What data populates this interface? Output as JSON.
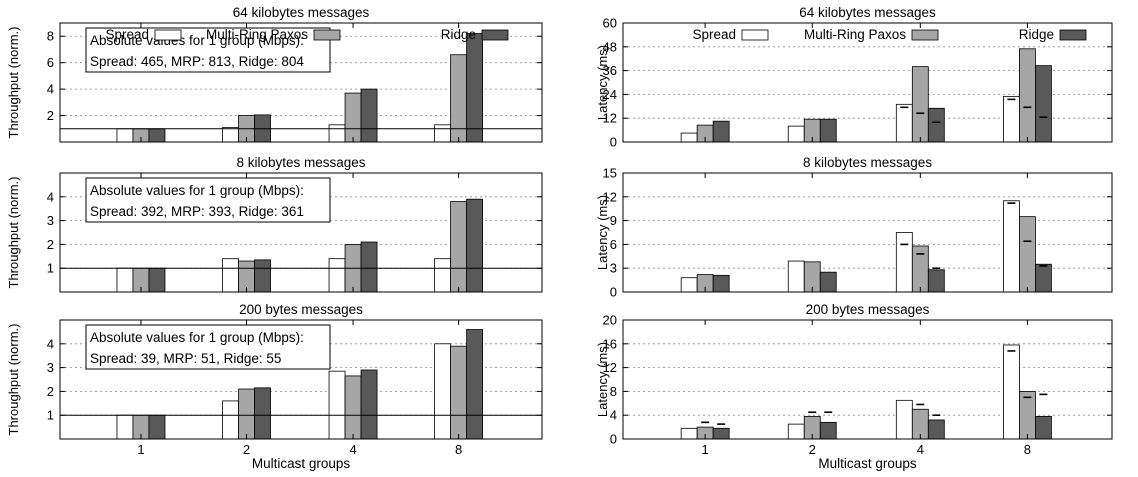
{
  "figure": {
    "xlabel": "Multicast groups",
    "categories": [
      "1",
      "2",
      "4",
      "8"
    ]
  },
  "legend_labels": [
    "Spread",
    "Multi-Ring Paxos",
    "Ridge"
  ],
  "colors": {
    "Spread": "#ffffff",
    "Multi-Ring Paxos": "#a6a6a6",
    "Ridge": "#595959",
    "axis": "#000000",
    "grid": "#8c8c8c"
  },
  "chart_data": [
    {
      "type": "bar",
      "title": "64 kilobytes messages",
      "ylabel": "Throughput (norm.)",
      "xlabel": "",
      "categories": [
        "1",
        "2",
        "4",
        "8"
      ],
      "ylim": [
        0,
        9
      ],
      "yticks": [
        2,
        4,
        6,
        8
      ],
      "baseline": 1,
      "grid": true,
      "legend": "top",
      "series": [
        {
          "name": "Spread",
          "values": [
            1,
            1.1,
            1.3,
            1.3
          ]
        },
        {
          "name": "Multi-Ring Paxos",
          "values": [
            1,
            2.0,
            3.7,
            6.6
          ]
        },
        {
          "name": "Ridge",
          "values": [
            1,
            2.05,
            4.0,
            8.2
          ]
        }
      ],
      "annotation": [
        "Absolute values for 1 group (Mbps):",
        "Spread: 465, MRP: 813, Ridge: 804"
      ]
    },
    {
      "type": "bar",
      "title": "64 kilobytes messages",
      "ylabel": "Latency (ms)",
      "xlabel": "",
      "categories": [
        "1",
        "2",
        "4",
        "8"
      ],
      "ylim": [
        0,
        60
      ],
      "yticks": [
        0,
        12,
        24,
        36,
        48,
        60
      ],
      "grid": true,
      "legend": "top",
      "series": [
        {
          "name": "Spread",
          "values": [
            4.5,
            8,
            19,
            23
          ],
          "markers": [
            null,
            null,
            17.5,
            21.5
          ]
        },
        {
          "name": "Multi-Ring Paxos",
          "values": [
            8.5,
            11.5,
            38,
            47
          ],
          "markers": [
            null,
            null,
            14.5,
            17.5
          ]
        },
        {
          "name": "Ridge",
          "values": [
            10.5,
            11.5,
            17,
            38.5
          ],
          "markers": [
            null,
            null,
            10,
            12.5
          ]
        }
      ]
    },
    {
      "type": "bar",
      "title": "8 kilobytes messages",
      "ylabel": "Throughput (norm.)",
      "xlabel": "",
      "categories": [
        "1",
        "2",
        "4",
        "8"
      ],
      "ylim": [
        0,
        5
      ],
      "yticks": [
        1,
        2,
        3,
        4
      ],
      "baseline": 1,
      "grid": true,
      "series": [
        {
          "name": "Spread",
          "values": [
            1,
            1.4,
            1.4,
            1.4
          ]
        },
        {
          "name": "Multi-Ring Paxos",
          "values": [
            1,
            1.3,
            2.0,
            3.8
          ]
        },
        {
          "name": "Ridge",
          "values": [
            1,
            1.35,
            2.1,
            3.9
          ]
        }
      ],
      "annotation": [
        "Absolute values for 1 group (Mbps):",
        "Spread: 392, MRP: 393, Ridge: 361"
      ]
    },
    {
      "type": "bar",
      "title": "8 kilobytes messages",
      "ylabel": "Latency (ms)",
      "xlabel": "",
      "categories": [
        "1",
        "2",
        "4",
        "8"
      ],
      "ylim": [
        0,
        15
      ],
      "yticks": [
        0,
        3,
        6,
        9,
        12,
        15
      ],
      "grid": true,
      "series": [
        {
          "name": "Spread",
          "values": [
            1.8,
            3.9,
            7.5,
            11.5
          ],
          "markers": [
            null,
            null,
            6.0,
            11.2
          ]
        },
        {
          "name": "Multi-Ring Paxos",
          "values": [
            2.2,
            3.8,
            5.8,
            9.5
          ],
          "markers": [
            null,
            null,
            4.8,
            6.4
          ]
        },
        {
          "name": "Ridge",
          "values": [
            2.1,
            2.5,
            2.8,
            3.5
          ],
          "markers": [
            null,
            null,
            3.0,
            3.3
          ]
        }
      ]
    },
    {
      "type": "bar",
      "title": "200 bytes messages",
      "ylabel": "Throughput (norm.)",
      "xlabel": "Multicast groups",
      "categories": [
        "1",
        "2",
        "4",
        "8"
      ],
      "ylim": [
        0,
        5
      ],
      "yticks": [
        1,
        2,
        3,
        4
      ],
      "baseline": 1,
      "grid": true,
      "series": [
        {
          "name": "Spread",
          "values": [
            1,
            1.6,
            2.85,
            4.0
          ]
        },
        {
          "name": "Multi-Ring Paxos",
          "values": [
            1,
            2.1,
            2.65,
            3.9
          ]
        },
        {
          "name": "Ridge",
          "values": [
            1,
            2.15,
            2.9,
            4.6
          ]
        }
      ],
      "annotation": [
        "Absolute values for 1 group (Mbps):",
        "Spread: 39, MRP: 51, Ridge: 55"
      ]
    },
    {
      "type": "bar",
      "title": "200 bytes messages",
      "ylabel": "Latency (ms)",
      "xlabel": "Multicast groups",
      "categories": [
        "1",
        "2",
        "4",
        "8"
      ],
      "ylim": [
        0,
        20
      ],
      "yticks": [
        0,
        4,
        8,
        12,
        16,
        20
      ],
      "grid": true,
      "series": [
        {
          "name": "Spread",
          "values": [
            1.8,
            2.5,
            6.5,
            15.8
          ],
          "markers": [
            null,
            null,
            null,
            14.8
          ]
        },
        {
          "name": "Multi-Ring Paxos",
          "values": [
            2.0,
            3.8,
            5.0,
            8.0
          ],
          "markers": [
            2.8,
            4.5,
            5.8,
            7.0
          ]
        },
        {
          "name": "Ridge",
          "values": [
            1.8,
            2.8,
            3.2,
            3.8
          ],
          "markers": [
            2.5,
            4.5,
            4.0,
            7.5
          ]
        }
      ]
    }
  ]
}
